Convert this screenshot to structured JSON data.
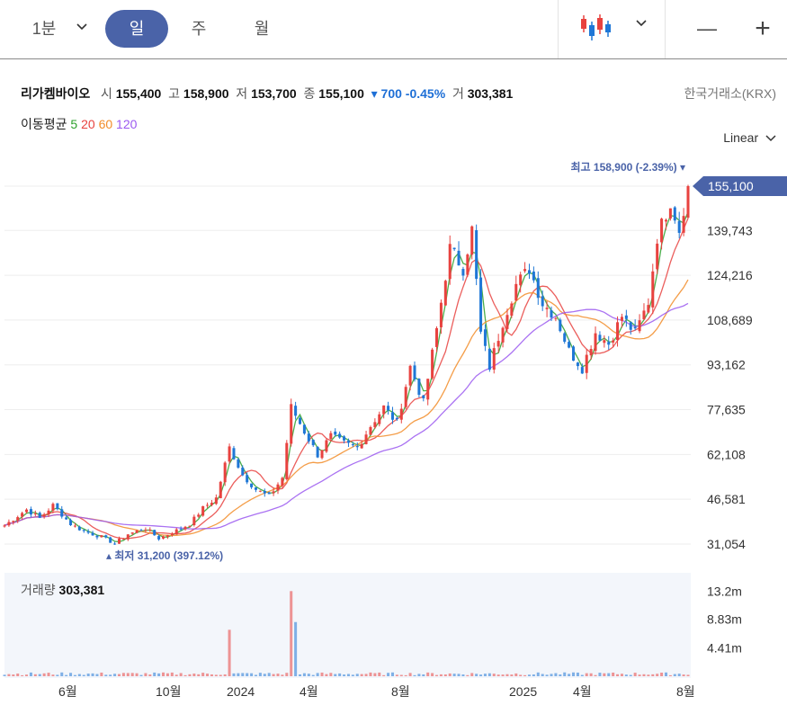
{
  "toolbar": {
    "interval_1min": "1분",
    "tab_day": "일",
    "tab_week": "주",
    "tab_month": "월",
    "minus": "—",
    "plus": "+"
  },
  "header": {
    "name": "리가켐바이오",
    "open_label": "시",
    "open": "155,400",
    "high_label": "고",
    "high": "158,900",
    "low_label": "저",
    "low": "153,700",
    "close_label": "종",
    "close": "155,100",
    "change": "▾ 700 -0.45%",
    "volume_label": "거",
    "volume": "303,381",
    "exchange": "한국거래소(KRX)"
  },
  "ma_legend": {
    "label": "이동평균",
    "periods": [
      "5",
      "20",
      "60",
      "120"
    ],
    "colors": [
      "#2ca02c",
      "#e8423f",
      "#f28c28",
      "#9b59f0"
    ]
  },
  "scale_label": "Linear",
  "colors": {
    "up": "#e8423f",
    "down": "#1f77d6",
    "accent": "#4a63a8",
    "current_tag": "#4a63a8"
  },
  "chart_data": {
    "type": "candlestick",
    "y_ticks": [
      "155,100",
      "139,743",
      "124,216",
      "108,689",
      "93,162",
      "77,635",
      "62,108",
      "46,581",
      "31,054"
    ],
    "y_tick_values": [
      155100,
      139743,
      124216,
      108689,
      93162,
      77635,
      62108,
      46581,
      31054
    ],
    "x_ticks": [
      "6월",
      "10월",
      "2024",
      "4월",
      "8월",
      "2025",
      "4월",
      "8월"
    ],
    "current_price": 155100,
    "high_marker": "최고 158,900 (-2.39%)",
    "low_marker": "최저 31,200 (397.12%)",
    "high": 158900,
    "low": 31200,
    "volume_label": "거래량",
    "volume_value": "303,381",
    "volume_ticks": [
      "13.2m",
      "8.83m",
      "4.41m"
    ],
    "volume_tick_values": [
      13.2,
      8.83,
      4.41
    ],
    "price_path": [
      [
        0,
        37500
      ],
      [
        5,
        43000
      ],
      [
        8,
        40000
      ],
      [
        11,
        44500
      ],
      [
        15,
        38000
      ],
      [
        18,
        35500
      ],
      [
        22,
        33500
      ],
      [
        25,
        31200
      ],
      [
        28,
        34500
      ],
      [
        32,
        36500
      ],
      [
        35,
        33000
      ],
      [
        38,
        35000
      ],
      [
        42,
        38000
      ],
      [
        45,
        43500
      ],
      [
        48,
        47000
      ],
      [
        51,
        64500
      ],
      [
        54,
        55000
      ],
      [
        57,
        50000
      ],
      [
        60,
        47500
      ],
      [
        63,
        54000
      ],
      [
        65,
        78500
      ],
      [
        68,
        70000
      ],
      [
        71,
        62000
      ],
      [
        74,
        68500
      ],
      [
        77,
        66000
      ],
      [
        80,
        64500
      ],
      [
        83,
        72000
      ],
      [
        86,
        78500
      ],
      [
        89,
        73000
      ],
      [
        92,
        92500
      ],
      [
        95,
        80000
      ],
      [
        98,
        105500
      ],
      [
        101,
        133500
      ],
      [
        104,
        126500
      ],
      [
        106,
        140000
      ],
      [
        108,
        104000
      ],
      [
        110,
        92500
      ],
      [
        113,
        108000
      ],
      [
        116,
        121000
      ],
      [
        119,
        126500
      ],
      [
        122,
        114500
      ],
      [
        125,
        110000
      ],
      [
        128,
        98000
      ],
      [
        131,
        92000
      ],
      [
        134,
        104500
      ],
      [
        137,
        100500
      ],
      [
        140,
        110000
      ],
      [
        143,
        104000
      ],
      [
        146,
        115000
      ],
      [
        148,
        137500
      ],
      [
        151,
        150000
      ],
      [
        153,
        140000
      ],
      [
        155,
        155100
      ]
    ],
    "volume_spikes": [
      [
        51,
        7.2
      ],
      [
        65,
        13.2
      ],
      [
        66,
        8.4
      ]
    ]
  }
}
